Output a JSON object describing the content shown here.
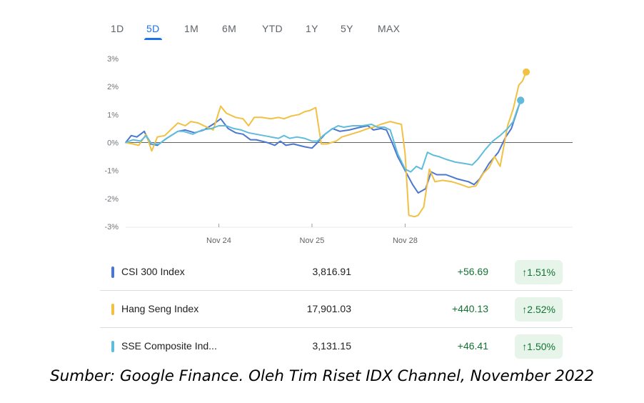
{
  "tabs": [
    {
      "label": "1D",
      "active": false
    },
    {
      "label": "5D",
      "active": true
    },
    {
      "label": "1M",
      "active": false
    },
    {
      "label": "6M",
      "active": false
    },
    {
      "label": "YTD",
      "active": false
    },
    {
      "label": "1Y",
      "active": false
    },
    {
      "label": "5Y",
      "active": false
    },
    {
      "label": "MAX",
      "active": false
    }
  ],
  "chart_data": {
    "type": "line",
    "ylim": [
      -3,
      3
    ],
    "y_tick_labels": [
      "3%",
      "2%",
      "1%",
      "0%",
      "-1%",
      "-2%",
      "-3%"
    ],
    "y_tick_values": [
      3,
      2,
      1,
      0,
      -1,
      -2,
      -3
    ],
    "x_tick_labels": [
      "Nov 24",
      "Nov 25",
      "Nov 28"
    ],
    "x_tick_values": [
      10,
      20,
      30
    ],
    "xlim": [
      0,
      42
    ],
    "baseline": 0,
    "grid": false,
    "series": [
      {
        "name": "CSI 300 Index",
        "color": "#4b77d1",
        "points": [
          [
            0,
            0.0
          ],
          [
            0.6,
            0.25
          ],
          [
            1.2,
            0.2
          ],
          [
            2,
            0.4
          ],
          [
            2.6,
            -0.05
          ],
          [
            3.4,
            -0.1
          ],
          [
            4.4,
            0.15
          ],
          [
            5.6,
            0.4
          ],
          [
            6.4,
            0.45
          ],
          [
            7.4,
            0.35
          ],
          [
            8.4,
            0.45
          ],
          [
            9.6,
            0.7
          ],
          [
            10.2,
            0.85
          ],
          [
            11,
            0.5
          ],
          [
            11.8,
            0.35
          ],
          [
            12.6,
            0.3
          ],
          [
            13.4,
            0.1
          ],
          [
            14,
            0.1
          ],
          [
            15.2,
            0.0
          ],
          [
            16,
            -0.1
          ],
          [
            16.6,
            0.05
          ],
          [
            17.2,
            -0.1
          ],
          [
            18,
            -0.05
          ],
          [
            19.2,
            -0.15
          ],
          [
            20,
            -0.2
          ],
          [
            20.6,
            0.0
          ],
          [
            21.4,
            0.3
          ],
          [
            22.2,
            0.5
          ],
          [
            23,
            0.4
          ],
          [
            24,
            0.45
          ],
          [
            25.2,
            0.55
          ],
          [
            26,
            0.6
          ],
          [
            26.6,
            0.45
          ],
          [
            27.4,
            0.5
          ],
          [
            28,
            0.45
          ],
          [
            28.6,
            0.0
          ],
          [
            29.2,
            -0.5
          ],
          [
            30,
            -1.0
          ],
          [
            30.8,
            -1.5
          ],
          [
            31.4,
            -1.8
          ],
          [
            32.2,
            -1.65
          ],
          [
            32.8,
            -1.05
          ],
          [
            33.4,
            -1.15
          ],
          [
            34.4,
            -1.15
          ],
          [
            35.6,
            -1.3
          ],
          [
            36.8,
            -1.4
          ],
          [
            37.4,
            -1.5
          ],
          [
            38,
            -1.3
          ],
          [
            39,
            -0.75
          ],
          [
            40,
            -0.35
          ],
          [
            40.8,
            0.2
          ],
          [
            41.4,
            0.5
          ],
          [
            42,
            1.1
          ],
          [
            42.4,
            1.51
          ]
        ]
      },
      {
        "name": "Hang Seng Index",
        "color": "#f2c043",
        "points": [
          [
            0,
            0.0
          ],
          [
            0.8,
            -0.05
          ],
          [
            1.4,
            -0.1
          ],
          [
            2.2,
            0.3
          ],
          [
            2.8,
            -0.3
          ],
          [
            3.4,
            0.2
          ],
          [
            4.2,
            0.25
          ],
          [
            5.6,
            0.7
          ],
          [
            6.4,
            0.6
          ],
          [
            7,
            0.75
          ],
          [
            7.8,
            0.7
          ],
          [
            8.4,
            0.6
          ],
          [
            9.4,
            0.45
          ],
          [
            10.2,
            1.3
          ],
          [
            10.8,
            1.05
          ],
          [
            11.8,
            0.9
          ],
          [
            12.6,
            0.85
          ],
          [
            13.2,
            0.6
          ],
          [
            13.8,
            0.9
          ],
          [
            14.6,
            0.9
          ],
          [
            15.6,
            0.85
          ],
          [
            16.4,
            0.9
          ],
          [
            17,
            0.85
          ],
          [
            17.8,
            0.95
          ],
          [
            18.6,
            1.0
          ],
          [
            19.2,
            1.1
          ],
          [
            19.8,
            1.15
          ],
          [
            20.4,
            1.25
          ],
          [
            21,
            -0.05
          ],
          [
            21.6,
            -0.05
          ],
          [
            22.6,
            0.05
          ],
          [
            23.2,
            0.2
          ],
          [
            24.2,
            0.3
          ],
          [
            25.2,
            0.4
          ],
          [
            26,
            0.5
          ],
          [
            26.6,
            0.55
          ],
          [
            27.4,
            0.65
          ],
          [
            28.4,
            0.75
          ],
          [
            29,
            0.7
          ],
          [
            29.6,
            0.65
          ],
          [
            30,
            -0.4
          ],
          [
            30.4,
            -2.6
          ],
          [
            31,
            -2.65
          ],
          [
            31.4,
            -2.6
          ],
          [
            32,
            -2.3
          ],
          [
            32.6,
            -0.95
          ],
          [
            33.2,
            -1.4
          ],
          [
            34,
            -1.35
          ],
          [
            35,
            -1.4
          ],
          [
            36,
            -1.5
          ],
          [
            36.8,
            -1.6
          ],
          [
            37.6,
            -1.55
          ],
          [
            38.4,
            -1.1
          ],
          [
            39,
            -0.9
          ],
          [
            39.6,
            -0.5
          ],
          [
            40.2,
            -0.85
          ],
          [
            41,
            0.6
          ],
          [
            41.6,
            1.2
          ],
          [
            42.2,
            2.05
          ],
          [
            42.6,
            2.2
          ],
          [
            43,
            2.52
          ]
        ]
      },
      {
        "name": "SSE Composite Ind...",
        "color": "#5fbcdb",
        "points": [
          [
            0,
            0.0
          ],
          [
            0.8,
            0.1
          ],
          [
            1.6,
            0.05
          ],
          [
            2.2,
            0.25
          ],
          [
            2.8,
            -0.05
          ],
          [
            3.6,
            -0.05
          ],
          [
            4.4,
            0.15
          ],
          [
            5.6,
            0.4
          ],
          [
            6.2,
            0.4
          ],
          [
            7.2,
            0.3
          ],
          [
            8.2,
            0.45
          ],
          [
            9.2,
            0.5
          ],
          [
            10,
            0.6
          ],
          [
            10.8,
            0.6
          ],
          [
            11.6,
            0.5
          ],
          [
            12.4,
            0.45
          ],
          [
            13.2,
            0.35
          ],
          [
            14,
            0.3
          ],
          [
            14.8,
            0.25
          ],
          [
            15.6,
            0.2
          ],
          [
            16.4,
            0.15
          ],
          [
            17,
            0.25
          ],
          [
            17.6,
            0.15
          ],
          [
            18.4,
            0.2
          ],
          [
            19.2,
            0.15
          ],
          [
            20,
            0.05
          ],
          [
            20.6,
            0.05
          ],
          [
            21.2,
            0.25
          ],
          [
            22,
            0.45
          ],
          [
            22.8,
            0.6
          ],
          [
            23.4,
            0.55
          ],
          [
            24.4,
            0.6
          ],
          [
            25.4,
            0.6
          ],
          [
            26.4,
            0.65
          ],
          [
            27,
            0.55
          ],
          [
            27.8,
            0.55
          ],
          [
            28.4,
            0.45
          ],
          [
            29.2,
            -0.4
          ],
          [
            30,
            -0.95
          ],
          [
            30.6,
            -1.05
          ],
          [
            31.2,
            -0.85
          ],
          [
            31.8,
            -0.95
          ],
          [
            32.4,
            -0.35
          ],
          [
            33,
            -0.45
          ],
          [
            33.6,
            -0.5
          ],
          [
            34.4,
            -0.6
          ],
          [
            35.4,
            -0.7
          ],
          [
            36.4,
            -0.75
          ],
          [
            37.2,
            -0.8
          ],
          [
            37.8,
            -0.6
          ],
          [
            38.6,
            -0.25
          ],
          [
            39.4,
            0.05
          ],
          [
            40.2,
            0.25
          ],
          [
            41,
            0.5
          ],
          [
            41.6,
            0.75
          ],
          [
            42,
            1.15
          ],
          [
            42.4,
            1.5
          ]
        ]
      }
    ]
  },
  "table": [
    {
      "name": "CSI 300 Index",
      "color": "#4b77d1",
      "price": "3,816.91",
      "change": "+56.69",
      "percent": "1.51%"
    },
    {
      "name": "Hang Seng Index",
      "color": "#f2c043",
      "price": "17,901.03",
      "change": "+440.13",
      "percent": "2.52%"
    },
    {
      "name": "SSE Composite Ind...",
      "color": "#5fbcdb",
      "price": "3,131.15",
      "change": "+46.41",
      "percent": "1.50%"
    }
  ],
  "caption": "Sumber: Google Finance. Oleh Tim Riset IDX Channel, November 2022"
}
